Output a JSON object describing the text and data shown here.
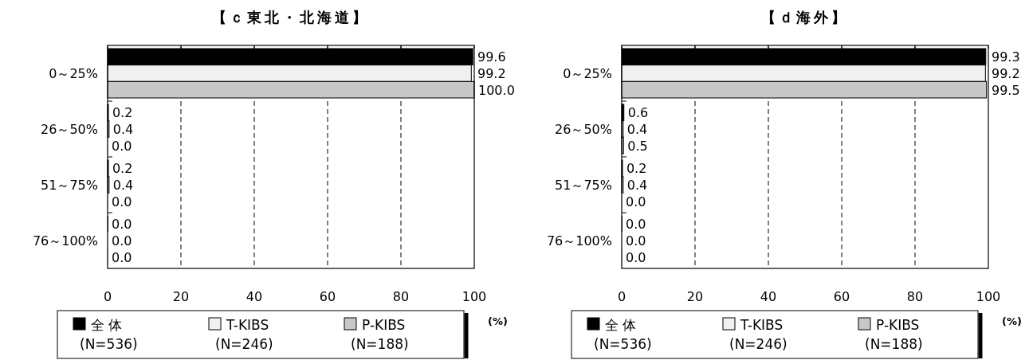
{
  "chart_data": [
    {
      "type": "bar",
      "orientation": "horizontal",
      "title": "【ｃ東北・北海道】",
      "xlabel": "(%)",
      "categories": [
        "0～25%",
        "26～50%",
        "51～75%",
        "76～100%"
      ],
      "series": [
        {
          "name": "全 体 (N=536)",
          "color": "#000000",
          "values": [
            99.6,
            0.2,
            0.2,
            0.0
          ],
          "value_labels": [
            "99.6",
            "0.2",
            "0.2",
            "0.0"
          ]
        },
        {
          "name": "T-KIBS (N=246)",
          "color": "#f0f0f0",
          "values": [
            99.2,
            0.4,
            0.4,
            0.0
          ],
          "value_labels": [
            "99.2",
            "0.4",
            "0.4",
            "0.0"
          ]
        },
        {
          "name": "P-KIBS (N=188)",
          "color": "#c8c8c8",
          "values": [
            100.0,
            0.0,
            0.0,
            0.0
          ],
          "value_labels": [
            "100.0",
            "0.0",
            "0.0",
            "0.0"
          ]
        }
      ],
      "xlim": [
        0,
        100
      ],
      "xticks": [
        0,
        20,
        40,
        60,
        80,
        100
      ],
      "grid": "x",
      "legend": "bottom"
    },
    {
      "type": "bar",
      "orientation": "horizontal",
      "title": "【ｄ海外】",
      "xlabel": "(%)",
      "categories": [
        "0～25%",
        "26～50%",
        "51～75%",
        "76～100%"
      ],
      "series": [
        {
          "name": "全 体 (N=536)",
          "color": "#000000",
          "values": [
            99.3,
            0.6,
            0.2,
            0.0
          ],
          "value_labels": [
            "99.3",
            "0.6",
            "0.2",
            "0.0"
          ]
        },
        {
          "name": "T-KIBS (N=246)",
          "color": "#f0f0f0",
          "values": [
            99.2,
            0.4,
            0.4,
            0.0
          ],
          "value_labels": [
            "99.2",
            "0.4",
            "0.4",
            "0.0"
          ]
        },
        {
          "name": "P-KIBS (N=188)",
          "color": "#c8c8c8",
          "values": [
            99.5,
            0.5,
            0.0,
            0.0
          ],
          "value_labels": [
            "99.5",
            "0.5",
            "0.0",
            "0.0"
          ]
        }
      ],
      "xlim": [
        0,
        100
      ],
      "xticks": [
        0,
        20,
        40,
        60,
        80,
        100
      ],
      "grid": "x",
      "legend": "bottom"
    }
  ]
}
